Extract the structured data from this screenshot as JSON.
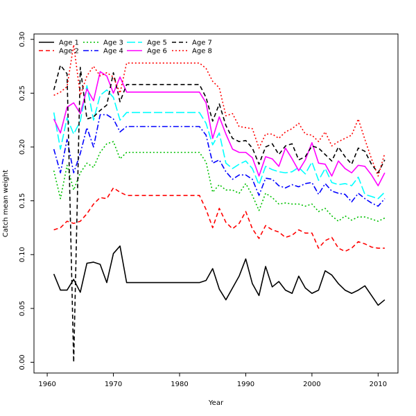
{
  "chart_data": {
    "type": "line",
    "title": "",
    "xlabel": "Year",
    "ylabel": "Catch mean weight",
    "xlim": [
      1958.0,
      2013.0
    ],
    "ylim": [
      -0.01,
      0.305
    ],
    "xticks": [
      1960,
      1970,
      1980,
      1990,
      2000,
      2010
    ],
    "yticks": [
      "0.00",
      "0.05",
      "0.10",
      "0.15",
      "0.20",
      "0.25",
      "0.30"
    ],
    "grid": false,
    "legend_position": "top-left",
    "x": [
      1961,
      1962,
      1963,
      1964,
      1965,
      1966,
      1967,
      1968,
      1969,
      1970,
      1971,
      1972,
      1973,
      1974,
      1975,
      1976,
      1977,
      1978,
      1979,
      1980,
      1981,
      1982,
      1983,
      1984,
      1985,
      1986,
      1987,
      1988,
      1989,
      1990,
      1991,
      1992,
      1993,
      1994,
      1995,
      1996,
      1997,
      1998,
      1999,
      2000,
      2001,
      2002,
      2003,
      2004,
      2005,
      2006,
      2007,
      2008,
      2009,
      2010,
      2011
    ],
    "series": [
      {
        "name": "Age 1",
        "color": "#000000",
        "dash": "solid",
        "values": [
          0.082,
          0.067,
          0.067,
          0.077,
          0.065,
          0.092,
          0.093,
          0.091,
          0.074,
          0.101,
          0.108,
          0.074,
          0.074,
          0.074,
          0.074,
          0.074,
          0.074,
          0.074,
          0.074,
          0.074,
          0.074,
          0.074,
          0.074,
          0.076,
          0.087,
          0.068,
          0.058,
          0.069,
          0.08,
          0.096,
          0.073,
          0.062,
          0.089,
          0.07,
          0.075,
          0.067,
          0.064,
          0.08,
          0.069,
          0.064,
          0.067,
          0.085,
          0.081,
          0.073,
          0.067,
          0.064,
          0.067,
          0.071,
          0.062,
          0.053,
          0.058
        ]
      },
      {
        "name": "Age 2",
        "color": "#ff0000",
        "dash": "dashed",
        "values": [
          0.123,
          0.125,
          0.131,
          0.129,
          0.131,
          0.138,
          0.147,
          0.153,
          0.152,
          0.162,
          0.158,
          0.155,
          0.155,
          0.155,
          0.155,
          0.155,
          0.155,
          0.155,
          0.155,
          0.155,
          0.155,
          0.155,
          0.155,
          0.142,
          0.125,
          0.143,
          0.13,
          0.124,
          0.129,
          0.14,
          0.124,
          0.115,
          0.127,
          0.123,
          0.121,
          0.116,
          0.118,
          0.123,
          0.12,
          0.12,
          0.106,
          0.113,
          0.116,
          0.106,
          0.103,
          0.106,
          0.112,
          0.11,
          0.107,
          0.106,
          0.106
        ]
      },
      {
        "name": "Age 3",
        "color": "#00c000",
        "dash": "dotted",
        "values": [
          0.178,
          0.152,
          0.183,
          0.16,
          0.176,
          0.185,
          0.181,
          0.195,
          0.203,
          0.205,
          0.189,
          0.195,
          0.195,
          0.195,
          0.195,
          0.195,
          0.195,
          0.195,
          0.195,
          0.195,
          0.195,
          0.195,
          0.195,
          0.186,
          0.158,
          0.165,
          0.16,
          0.16,
          0.157,
          0.166,
          0.155,
          0.141,
          0.157,
          0.153,
          0.147,
          0.148,
          0.147,
          0.147,
          0.145,
          0.147,
          0.14,
          0.143,
          0.136,
          0.131,
          0.136,
          0.132,
          0.135,
          0.135,
          0.133,
          0.131,
          0.134
        ]
      },
      {
        "name": "Age 4",
        "color": "#0000ff",
        "dash": "dashdot",
        "values": [
          0.198,
          0.176,
          0.207,
          0.176,
          0.194,
          0.218,
          0.2,
          0.23,
          0.23,
          0.226,
          0.214,
          0.219,
          0.219,
          0.219,
          0.219,
          0.219,
          0.219,
          0.219,
          0.219,
          0.219,
          0.219,
          0.219,
          0.219,
          0.211,
          0.185,
          0.188,
          0.177,
          0.17,
          0.174,
          0.174,
          0.17,
          0.155,
          0.171,
          0.17,
          0.164,
          0.162,
          0.165,
          0.163,
          0.166,
          0.167,
          0.156,
          0.166,
          0.159,
          0.157,
          0.156,
          0.149,
          0.157,
          0.152,
          0.148,
          0.145,
          0.152
        ]
      },
      {
        "name": "Age 5",
        "color": "#00ffff",
        "dash": "longdash",
        "values": [
          0.232,
          0.198,
          0.227,
          0.212,
          0.224,
          0.257,
          0.225,
          0.248,
          0.253,
          0.246,
          0.225,
          0.232,
          0.232,
          0.232,
          0.232,
          0.232,
          0.232,
          0.232,
          0.232,
          0.232,
          0.232,
          0.232,
          0.232,
          0.222,
          0.202,
          0.213,
          0.185,
          0.18,
          0.184,
          0.187,
          0.18,
          0.165,
          0.182,
          0.179,
          0.177,
          0.176,
          0.177,
          0.181,
          0.175,
          0.186,
          0.169,
          0.18,
          0.167,
          0.165,
          0.166,
          0.164,
          0.172,
          0.156,
          0.154,
          0.152,
          0.158
        ]
      },
      {
        "name": "Age 6",
        "color": "#ff00ff",
        "dash": "solid",
        "values": [
          0.226,
          0.213,
          0.237,
          0.241,
          0.231,
          0.254,
          0.243,
          0.27,
          0.266,
          0.25,
          0.265,
          0.251,
          0.251,
          0.251,
          0.251,
          0.251,
          0.251,
          0.251,
          0.251,
          0.251,
          0.251,
          0.251,
          0.251,
          0.241,
          0.208,
          0.228,
          0.212,
          0.198,
          0.195,
          0.195,
          0.19,
          0.173,
          0.191,
          0.189,
          0.182,
          0.199,
          0.189,
          0.178,
          0.188,
          0.204,
          0.185,
          0.184,
          0.173,
          0.187,
          0.18,
          0.176,
          0.183,
          0.182,
          0.174,
          0.164,
          0.176
        ]
      },
      {
        "name": "Age 7",
        "color": "#000000",
        "dash": "dashed",
        "values": [
          0.253,
          0.276,
          0.268,
          0.0,
          0.274,
          0.226,
          0.228,
          0.234,
          0.239,
          0.269,
          0.242,
          0.258,
          0.258,
          0.258,
          0.258,
          0.258,
          0.258,
          0.258,
          0.258,
          0.258,
          0.258,
          0.258,
          0.258,
          0.246,
          0.224,
          0.24,
          0.22,
          0.208,
          0.205,
          0.206,
          0.199,
          0.184,
          0.2,
          0.203,
          0.193,
          0.201,
          0.203,
          0.188,
          0.191,
          0.201,
          0.199,
          0.193,
          0.187,
          0.2,
          0.191,
          0.184,
          0.199,
          0.196,
          0.184,
          0.176,
          0.188
        ]
      },
      {
        "name": "Age 8",
        "color": "#ff0000",
        "dash": "dotted",
        "values": [
          0.248,
          0.251,
          0.256,
          0.295,
          0.248,
          0.266,
          0.275,
          0.266,
          0.269,
          0.265,
          0.25,
          0.278,
          0.278,
          0.278,
          0.278,
          0.278,
          0.278,
          0.278,
          0.278,
          0.278,
          0.278,
          0.278,
          0.278,
          0.273,
          0.261,
          0.255,
          0.229,
          0.231,
          0.219,
          0.218,
          0.217,
          0.199,
          0.212,
          0.212,
          0.208,
          0.214,
          0.217,
          0.222,
          0.212,
          0.211,
          0.205,
          0.214,
          0.201,
          0.205,
          0.208,
          0.211,
          0.226,
          0.207,
          0.189,
          0.173,
          0.194
        ]
      }
    ]
  }
}
